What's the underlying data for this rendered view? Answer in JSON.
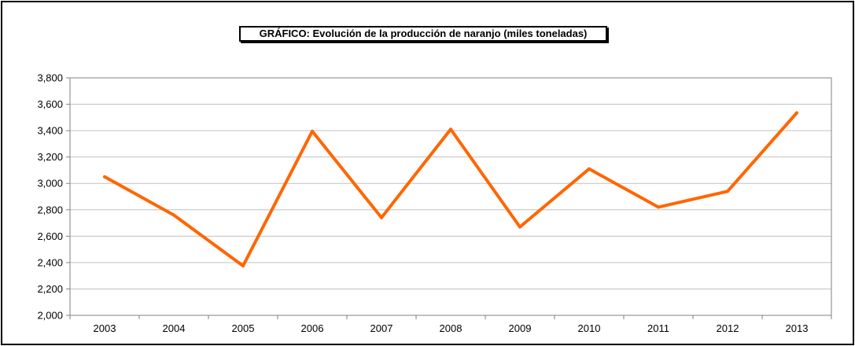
{
  "chart_data": {
    "type": "line",
    "title": "GRÁFICO: Evolución de la producción de naranjo (miles toneladas)",
    "xlabel": "",
    "ylabel": "",
    "categories": [
      "2003",
      "2004",
      "2005",
      "2006",
      "2007",
      "2008",
      "2009",
      "2010",
      "2011",
      "2012",
      "2013"
    ],
    "series": [
      {
        "values": [
          3050,
          2760,
          2375,
          3395,
          2740,
          3410,
          2670,
          3110,
          2820,
          2940,
          3535
        ]
      }
    ],
    "ylim": [
      2000,
      3800
    ],
    "yticks": [
      "2,000",
      "2,200",
      "2,400",
      "2,600",
      "2,800",
      "3,000",
      "3,200",
      "3,400",
      "3,600",
      "3,800"
    ],
    "ytick_values": [
      2000,
      2200,
      2400,
      2600,
      2800,
      3000,
      3200,
      3400,
      3600,
      3800
    ],
    "grid": true,
    "legend": "none",
    "colors": {
      "line": "#ff6600",
      "grid": "#c0c0c0",
      "axis": "#808080"
    }
  }
}
